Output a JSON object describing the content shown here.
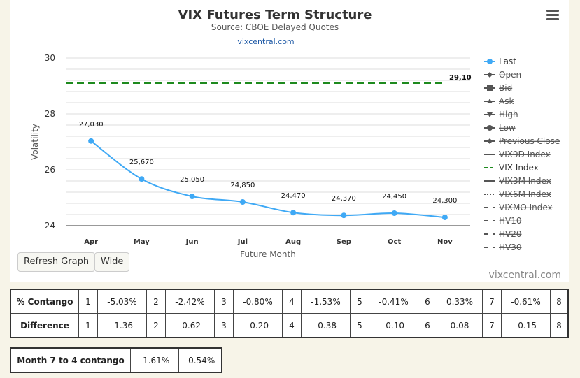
{
  "chart_data": {
    "type": "line",
    "title": "VIX Futures Term Structure",
    "subtitle": "Source: CBOE Delayed Quotes",
    "link": "vixcentral.com",
    "credit": "vixcentral.com",
    "xlabel": "Future Month",
    "ylabel": "Volatility",
    "categories": [
      "Apr",
      "May",
      "Jun",
      "Jul",
      "Aug",
      "Sep",
      "Oct",
      "Nov"
    ],
    "ylim": [
      24,
      30
    ],
    "yticks": [
      "24",
      "26",
      "28",
      "30"
    ],
    "grid": true,
    "legend_position": "right",
    "series": [
      {
        "name": "Last",
        "values": [
          27.03,
          25.67,
          25.05,
          24.85,
          24.47,
          24.37,
          24.45,
          24.3
        ],
        "labels": [
          "27,030",
          "25,670",
          "25,050",
          "24,850",
          "24,470",
          "24,370",
          "24,450",
          "24,300"
        ],
        "color": "#3fa9f5"
      },
      {
        "name": "VIX Index",
        "value": 29.1,
        "label": "29,10",
        "color": "#1e8a1e"
      }
    ],
    "legend": [
      {
        "name": "Last",
        "active": true,
        "symbol": "circle",
        "color": "#3fa9f5"
      },
      {
        "name": "Open",
        "active": false,
        "symbol": "diamond",
        "color": "#555555"
      },
      {
        "name": "Bid",
        "active": false,
        "symbol": "square",
        "color": "#555555"
      },
      {
        "name": "Ask",
        "active": false,
        "symbol": "triangle",
        "color": "#555555"
      },
      {
        "name": "High",
        "active": false,
        "symbol": "triangle-down",
        "color": "#555555"
      },
      {
        "name": "Low",
        "active": false,
        "symbol": "circle",
        "color": "#555555"
      },
      {
        "name": "Previous Close",
        "active": false,
        "symbol": "diamond",
        "color": "#555555"
      },
      {
        "name": "VIX9D Index",
        "active": false,
        "symbol": "line",
        "color": "#555555"
      },
      {
        "name": "VIX Index",
        "active": true,
        "symbol": "dash",
        "color": "#1e8a1e"
      },
      {
        "name": "VIX3M Index",
        "active": false,
        "symbol": "line",
        "color": "#555555"
      },
      {
        "name": "VIX6M Index",
        "active": false,
        "symbol": "dot",
        "color": "#555555"
      },
      {
        "name": "VIXMO Index",
        "active": false,
        "symbol": "dashdot",
        "color": "#555555"
      },
      {
        "name": "HV10",
        "active": false,
        "symbol": "dashdot",
        "color": "#555555"
      },
      {
        "name": "HV20",
        "active": false,
        "symbol": "dashdot",
        "color": "#555555"
      },
      {
        "name": "HV30",
        "active": false,
        "symbol": "dashdot",
        "color": "#555555"
      }
    ]
  },
  "buttons": {
    "refresh": "Refresh Graph",
    "wide": "Wide"
  },
  "contango_table": {
    "rows": [
      {
        "label": "% Contango",
        "cells": [
          {
            "idx": "1",
            "val": "-5.03%"
          },
          {
            "idx": "2",
            "val": "-2.42%"
          },
          {
            "idx": "3",
            "val": "-0.80%"
          },
          {
            "idx": "4",
            "val": "-1.53%"
          },
          {
            "idx": "5",
            "val": "-0.41%"
          },
          {
            "idx": "6",
            "val": "0.33%"
          },
          {
            "idx": "7",
            "val": "-0.61%"
          }
        ],
        "last_idx": "8"
      },
      {
        "label": "Difference",
        "cells": [
          {
            "idx": "1",
            "val": "-1.36"
          },
          {
            "idx": "2",
            "val": "-0.62"
          },
          {
            "idx": "3",
            "val": "-0.20"
          },
          {
            "idx": "4",
            "val": "-0.38"
          },
          {
            "idx": "5",
            "val": "-0.10"
          },
          {
            "idx": "6",
            "val": "0.08"
          },
          {
            "idx": "7",
            "val": "-0.15"
          }
        ],
        "last_idx": "8"
      }
    ]
  },
  "month74": {
    "label": "Month 7 to 4 contango",
    "values": [
      "-1.61%",
      "-0.54%"
    ]
  }
}
